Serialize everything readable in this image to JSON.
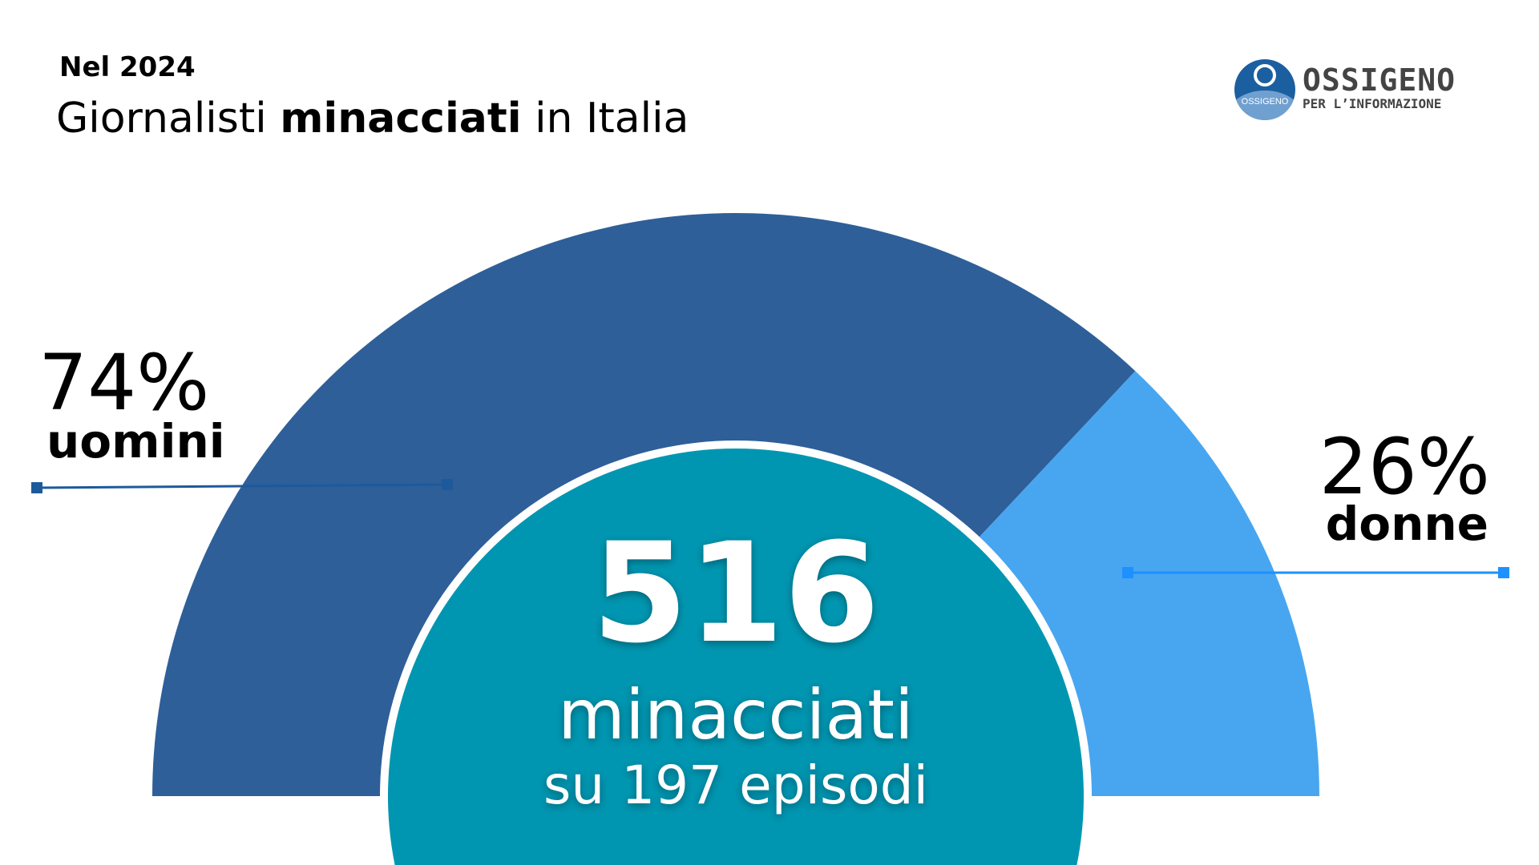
{
  "header": {
    "kicker": "Nel 2024",
    "title_pre": "Giornalisti ",
    "title_bold": "minacciati",
    "title_post": " in Italia"
  },
  "logo": {
    "badge_text": "OSSIGENO",
    "name": "OSSIGENO",
    "subtitle": "PER L’INFORMAZIONE"
  },
  "center": {
    "total": "516",
    "label": "minacciati",
    "episodes": "su 197 episodi"
  },
  "chart_data": {
    "type": "pie",
    "shape": "half-donut",
    "categories": [
      "uomini",
      "donne"
    ],
    "values": [
      74,
      26
    ],
    "labels": [
      "74%",
      "uomini",
      "26%",
      "donne"
    ],
    "colors": [
      "#2f5f98",
      "#48a5ef"
    ],
    "center_color": "#0096b1",
    "leader_colors": [
      "#1c5a9c",
      "#1e90ff"
    ]
  }
}
